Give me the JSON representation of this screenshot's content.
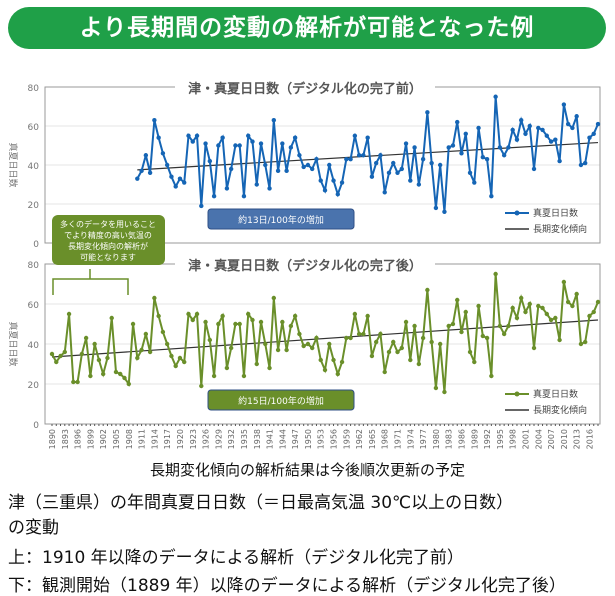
{
  "header": {
    "title": "より長期間の変動の解析が可能となった例"
  },
  "chart_data": [
    {
      "type": "line",
      "title": "津・真夏日日数（デジタル化の完了前）",
      "ylabel": "真夏日日数",
      "ylim": [
        0,
        80
      ],
      "yticks": [
        0,
        20,
        40,
        60,
        80
      ],
      "x_start": 1910,
      "x_end": 2018,
      "series": [
        {
          "name": "真夏日日数",
          "color": "#1565b5",
          "values": [
            33,
            37,
            45,
            36,
            63,
            54,
            46,
            40,
            34,
            29,
            33,
            31,
            55,
            52,
            55,
            19,
            51,
            42,
            24,
            50,
            54,
            28,
            38,
            50,
            50,
            24,
            55,
            52,
            30,
            51,
            40,
            28,
            63,
            37,
            51,
            37,
            49,
            54,
            45,
            39,
            40,
            38,
            43,
            32,
            27,
            40,
            32,
            25,
            31,
            43,
            43,
            55,
            45,
            45,
            54,
            34,
            41,
            45,
            26,
            36,
            41,
            36,
            38,
            51,
            32,
            49,
            30,
            43,
            67,
            41,
            18,
            40,
            16,
            49,
            50,
            62,
            46,
            56,
            36,
            31,
            59,
            44,
            43,
            24,
            75,
            49,
            45,
            49,
            58,
            53,
            63,
            56,
            60,
            38,
            59,
            58,
            55,
            52,
            53,
            42,
            71,
            61,
            59,
            65,
            40,
            41,
            54,
            56,
            61
          ]
        },
        {
          "name": "長期変化傾向",
          "color": "#333333",
          "trend": [
            37.5,
            51.5
          ]
        }
      ],
      "annotation": "約13日/100年の増加",
      "annotation_color": "#4a73ad"
    },
    {
      "type": "line",
      "title": "津・真夏日日数（デジタル化の完了後）",
      "ylabel": "真夏日日数",
      "ylim": [
        0,
        80
      ],
      "yticks": [
        0,
        20,
        40,
        60,
        80
      ],
      "x_start": 1890,
      "x_end": 2018,
      "xticks": [
        1890,
        1893,
        1896,
        1899,
        1902,
        1905,
        1908,
        1911,
        1914,
        1917,
        1920,
        1923,
        1926,
        1929,
        1932,
        1935,
        1938,
        1941,
        1944,
        1947,
        1950,
        1953,
        1956,
        1959,
        1962,
        1965,
        1968,
        1971,
        1974,
        1977,
        1980,
        1983,
        1986,
        1989,
        1992,
        1995,
        1998,
        2001,
        2004,
        2007,
        2010,
        2013,
        2016
      ],
      "series": [
        {
          "name": "真夏日日数",
          "color": "#6a8f2a",
          "values": [
            35,
            31,
            34,
            36,
            55,
            21,
            21,
            35,
            43,
            24,
            40,
            32,
            25,
            33,
            53,
            26,
            25,
            23,
            20,
            50,
            33,
            37,
            45,
            36,
            63,
            54,
            46,
            40,
            34,
            29,
            33,
            31,
            55,
            52,
            55,
            19,
            51,
            42,
            24,
            50,
            54,
            28,
            38,
            50,
            50,
            24,
            55,
            52,
            30,
            51,
            40,
            28,
            63,
            37,
            51,
            37,
            49,
            54,
            45,
            39,
            40,
            38,
            43,
            32,
            27,
            40,
            32,
            25,
            31,
            43,
            43,
            55,
            45,
            45,
            54,
            34,
            41,
            45,
            26,
            36,
            41,
            36,
            38,
            51,
            32,
            49,
            30,
            43,
            67,
            41,
            18,
            40,
            16,
            49,
            50,
            62,
            46,
            56,
            36,
            31,
            59,
            44,
            43,
            24,
            75,
            49,
            45,
            49,
            58,
            53,
            63,
            56,
            60,
            38,
            59,
            58,
            55,
            52,
            53,
            42,
            71,
            61,
            59,
            65,
            40,
            41,
            54,
            56,
            61
          ]
        },
        {
          "name": "長期変化傾向",
          "color": "#333333",
          "trend": [
            33.5,
            52
          ]
        }
      ],
      "annotation": "約15日/100年の増加",
      "annotation_color": "#6a8f2a"
    }
  ],
  "callout": {
    "lines": [
      "多くのデータを用いること",
      "でより精度の高い気温の",
      "長期変化傾向の解析が",
      "可能となります"
    ]
  },
  "note": "長期変化傾向の解析結果は今後順次更新の予定",
  "caption": {
    "line1": "津（三重県）の年間真夏日日数（＝日最高気温 30℃以上の日数）",
    "line2": "の変動",
    "line3": "上：1910 年以降のデータによる解析（デジタル化完了前）",
    "line4": "下：観測開始（1889 年）以降のデータによる解析（デジタル化完了後）"
  }
}
